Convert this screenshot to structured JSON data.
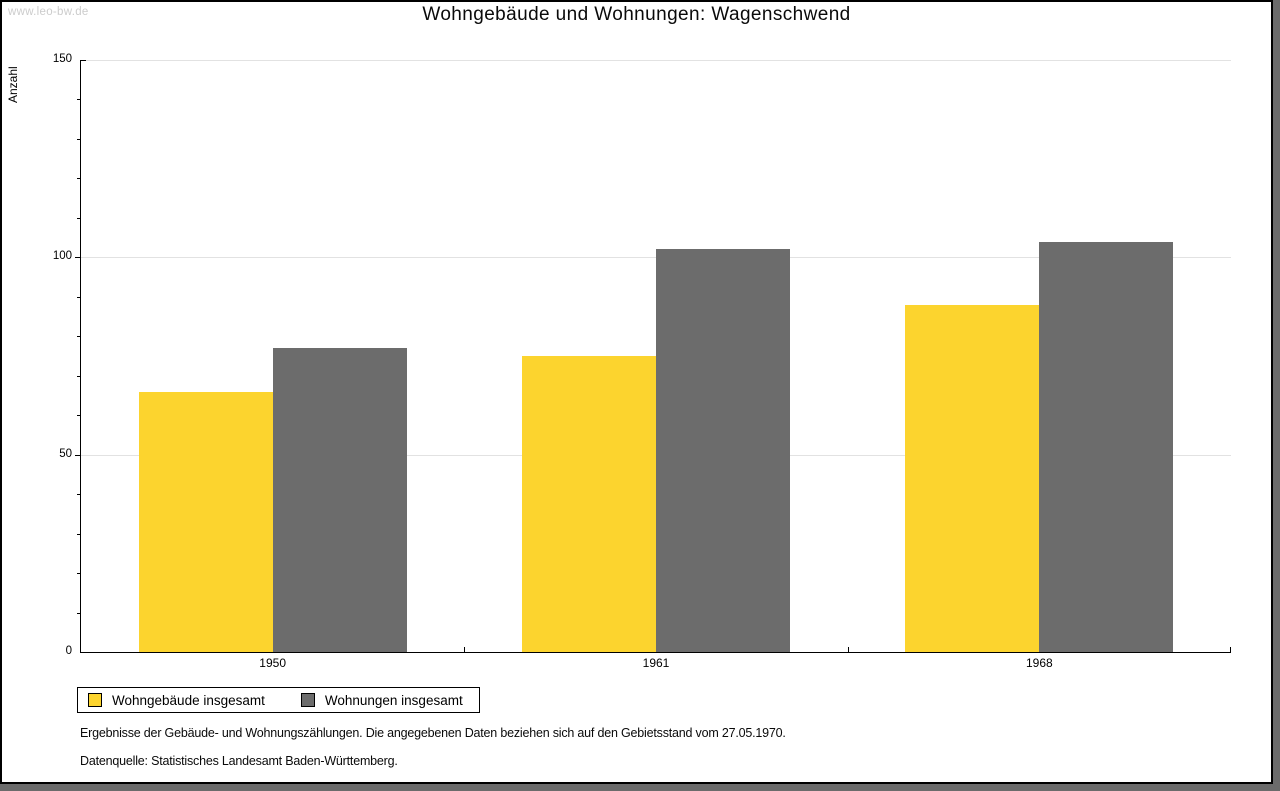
{
  "watermark": "www.leo-bw.de",
  "title": "Wohngebäude und Wohnungen: Wagenschwend",
  "chart_data": {
    "type": "bar",
    "title": "Wohngebäude und Wohnungen: Wagenschwend",
    "ylabel": "Anzahl",
    "xlabel": "",
    "categories": [
      "1950",
      "1961",
      "1968"
    ],
    "series": [
      {
        "name": "Wohngebäude insgesamt",
        "color": "#fcd42e",
        "values": [
          66,
          75,
          88
        ]
      },
      {
        "name": "Wohnungen insgesamt",
        "color": "#6c6c6c",
        "values": [
          77,
          102,
          104
        ]
      }
    ],
    "ylim": [
      0,
      150
    ],
    "yticks": [
      0,
      50,
      100,
      150
    ],
    "minor_tick_step": 10,
    "grid": true,
    "legend_position": "bottom-left"
  },
  "footer": {
    "line1": "Ergebnisse der Gebäude- und Wohnungszählungen. Die angegebenen Daten beziehen sich auf den Gebietsstand vom 27.05.1970.",
    "line2": "Datenquelle: Statistisches Landesamt Baden-Württemberg."
  },
  "colors": {
    "grid": "#e2e2e2",
    "axis": "#000000",
    "background": "#ffffff",
    "shadow": "#6b6b6b",
    "watermark": "#cccccc"
  }
}
